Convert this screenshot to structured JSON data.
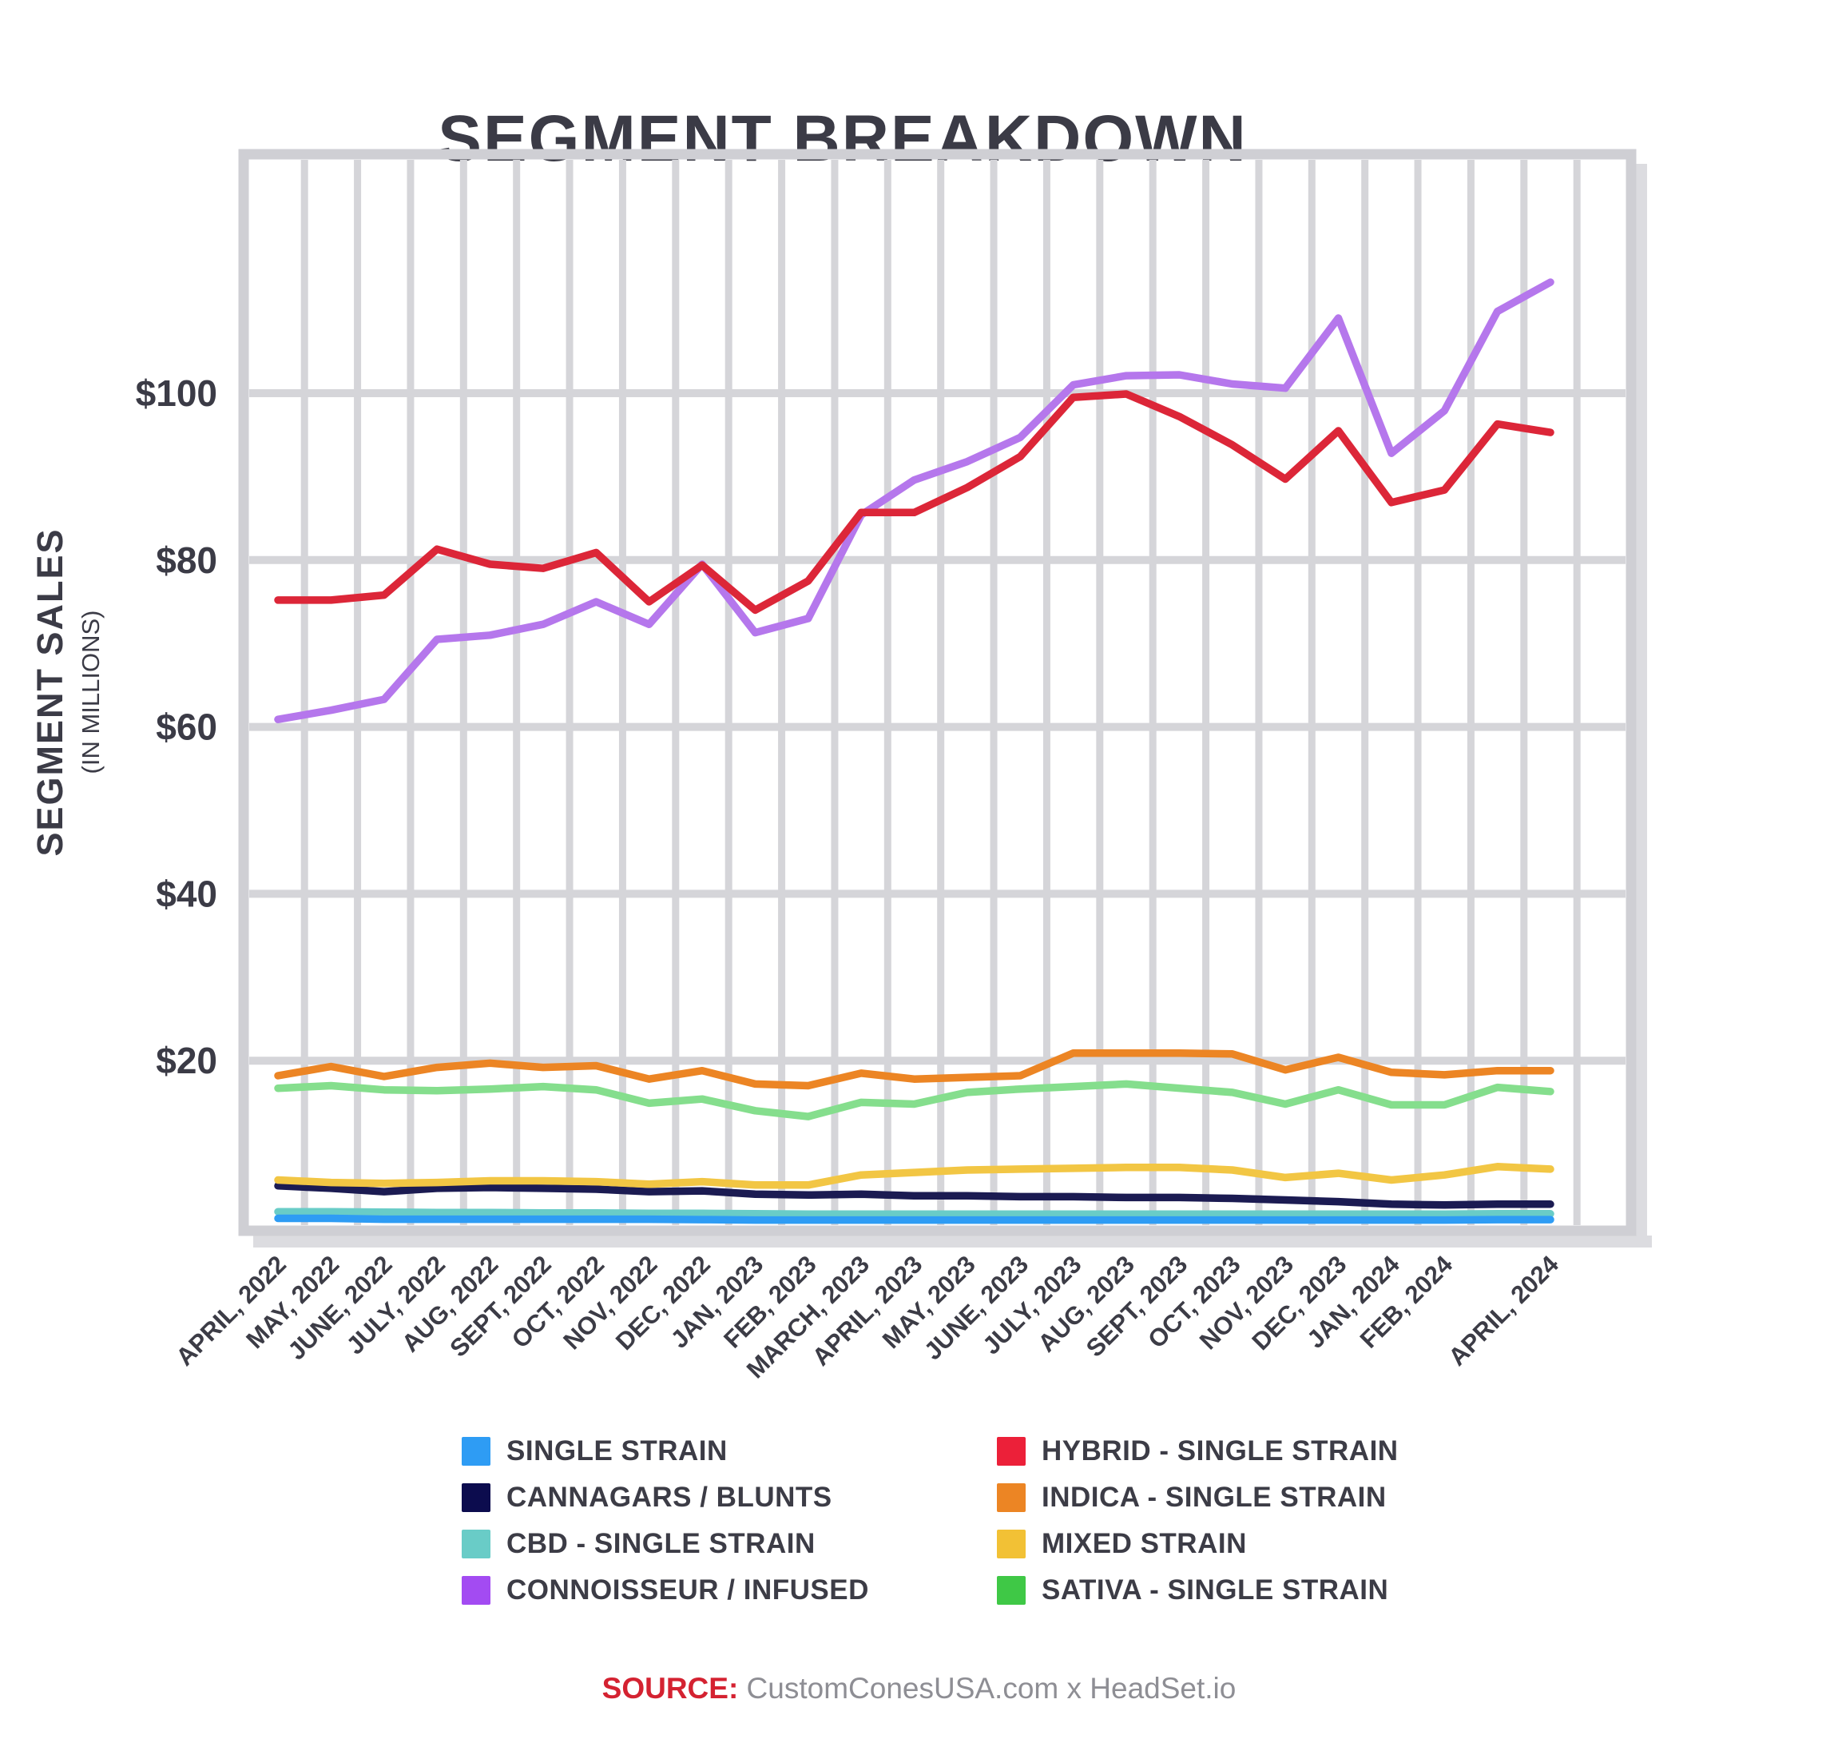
{
  "page": {
    "background": "#FFFFFF"
  },
  "theme": {
    "grid_color": "#D5D5D9",
    "border_color": "#CFCFD4",
    "shadow_color": "#DCDCE0",
    "text_dark": "#3B3B46",
    "source_red": "#D42231",
    "source_gray": "#8E8E94"
  },
  "chart_data": {
    "type": "line",
    "title": "SEGMENT BREAKDOWN",
    "y_axis": {
      "title": "SEGMENT SALES",
      "subtitle": "(IN MILLIONS)",
      "tick_labels": [
        "$20",
        "$40",
        "$60",
        "$80",
        "$100"
      ],
      "tick_values": [
        20,
        40,
        60,
        80,
        100
      ],
      "range": [
        0,
        128
      ],
      "unit": "USD millions"
    },
    "x_labels": [
      "APRIL, 2022",
      "MAY, 2022",
      "JUNE, 2022",
      "JULY, 2022",
      "AUG, 2022",
      "SEPT, 2022",
      "OCT, 2022",
      "NOV, 2022",
      "DEC, 2022",
      "JAN, 2023",
      "FEB, 2023",
      "MARCH, 2023",
      "APRIL, 2023",
      "MAY, 2023",
      "JUNE, 2023",
      "JULY, 2023",
      "AUG, 2023",
      "SEPT, 2023",
      "OCT, 2023",
      "NOV, 2023",
      "DEC, 2023",
      "JAN, 2024",
      "FEB, 2024",
      "APRIL, 2024"
    ],
    "unlabeled_point_index": 23,
    "grid": true,
    "legend": {
      "columns": 2,
      "order": [
        "single_strain",
        "cannagars",
        "cbd",
        "connoisseur",
        "hybrid",
        "indica",
        "mixed",
        "sativa"
      ]
    },
    "series": [
      {
        "id": "cbd",
        "label": "CBD - SINGLE STRAIN",
        "color": "#69CCC7",
        "legend_color": "#69CCC7",
        "values": [
          1.9,
          1.9,
          1.85,
          1.8,
          1.8,
          1.75,
          1.75,
          1.7,
          1.7,
          1.65,
          1.6,
          1.6,
          1.6,
          1.6,
          1.6,
          1.6,
          1.6,
          1.6,
          1.6,
          1.6,
          1.6,
          1.6,
          1.6,
          1.65,
          1.65
        ]
      },
      {
        "id": "single_strain",
        "label": "SINGLE STRAIN",
        "color": "#2E9CF4",
        "legend_color": "#2E9CF4",
        "values": [
          1.1,
          1.1,
          1.0,
          1.0,
          1.0,
          1.0,
          1.0,
          1.0,
          0.95,
          0.9,
          0.9,
          0.9,
          0.9,
          0.9,
          0.9,
          0.9,
          0.9,
          0.9,
          0.9,
          0.9,
          0.9,
          0.9,
          0.9,
          0.95,
          0.95
        ]
      },
      {
        "id": "cannagars",
        "label": "CANNAGARS / BLUNTS",
        "color": "#1B1B52",
        "legend_color": "#0C0C4E",
        "values": [
          5.0,
          4.7,
          4.3,
          4.7,
          4.8,
          4.7,
          4.6,
          4.3,
          4.4,
          4.0,
          3.9,
          4.0,
          3.8,
          3.8,
          3.7,
          3.7,
          3.6,
          3.6,
          3.5,
          3.3,
          3.1,
          2.8,
          2.7,
          2.8,
          2.8
        ]
      },
      {
        "id": "mixed",
        "label": "MIXED STRAIN",
        "color": "#F2C644",
        "legend_color": "#F2C135",
        "values": [
          5.7,
          5.4,
          5.3,
          5.4,
          5.6,
          5.6,
          5.5,
          5.2,
          5.5,
          5.1,
          5.1,
          6.3,
          6.6,
          6.9,
          7.0,
          7.1,
          7.2,
          7.2,
          6.9,
          6.0,
          6.5,
          5.7,
          6.3,
          7.3,
          7.0
        ]
      },
      {
        "id": "sativa",
        "label": "SATIVA - SINGLE STRAIN",
        "color": "#85DE8D",
        "legend_color": "#3FC846",
        "values": [
          16.7,
          17.0,
          16.5,
          16.4,
          16.6,
          16.9,
          16.5,
          14.9,
          15.4,
          14.0,
          13.3,
          15.0,
          14.8,
          16.2,
          16.6,
          16.9,
          17.2,
          16.7,
          16.2,
          14.8,
          16.5,
          14.7,
          14.7,
          16.8,
          16.3
        ]
      },
      {
        "id": "indica",
        "label": "INDICA - SINGLE STRAIN",
        "color": "#EC8524",
        "legend_color": "#EC8524",
        "values": [
          18.2,
          19.3,
          18.1,
          19.2,
          19.7,
          19.2,
          19.4,
          17.8,
          18.8,
          17.2,
          17.0,
          18.5,
          17.8,
          18.0,
          18.2,
          20.9,
          20.9,
          20.9,
          20.8,
          18.9,
          20.4,
          18.6,
          18.3,
          18.8,
          18.8
        ]
      },
      {
        "id": "connoisseur",
        "label": "CONNOISSEUR / INFUSED",
        "color": "#B577EC",
        "legend_color": "#A34BF2",
        "values": [
          60.9,
          62.0,
          63.3,
          70.5,
          71.0,
          72.3,
          75.0,
          72.3,
          79.5,
          71.3,
          73.0,
          85.4,
          89.6,
          91.8,
          94.7,
          101.0,
          102.1,
          102.2,
          101.1,
          100.6,
          109.0,
          92.8,
          97.9,
          109.8,
          113.3
        ]
      },
      {
        "id": "hybrid",
        "label": "HYBRID - SINGLE STRAIN",
        "color": "#DC2638",
        "legend_color": "#EC2039",
        "values": [
          75.2,
          75.2,
          75.8,
          81.3,
          79.5,
          79.0,
          80.9,
          75.0,
          79.4,
          74.0,
          77.5,
          85.7,
          85.7,
          88.7,
          92.4,
          99.5,
          99.9,
          97.2,
          93.8,
          89.7,
          95.5,
          86.9,
          88.4,
          96.3,
          95.3
        ]
      }
    ],
    "source": {
      "prefix": "SOURCE:",
      "text": "CustomConesUSA.com x HeadSet.io"
    }
  }
}
